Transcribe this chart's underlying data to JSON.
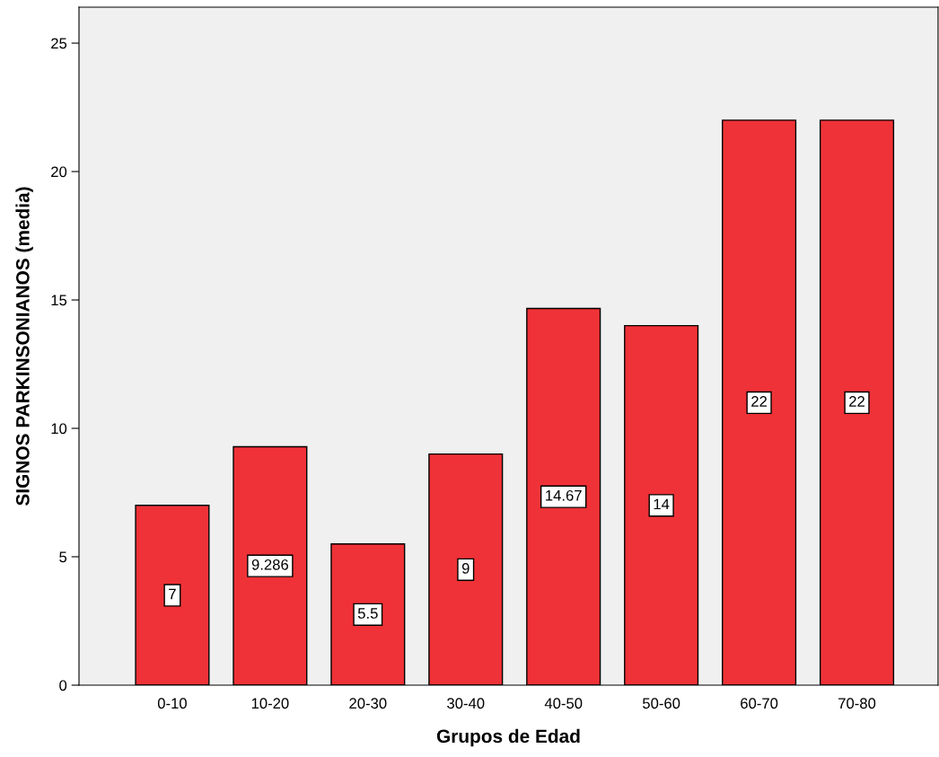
{
  "chart_data": {
    "type": "bar",
    "xlabel": "Grupos de Edad",
    "ylabel": "SIGNOS PARKINSONIANOS (media)",
    "categories": [
      "0-10",
      "10-20",
      "20-30",
      "30-40",
      "40-50",
      "50-60",
      "60-70",
      "70-80"
    ],
    "values": [
      7,
      9.286,
      5.5,
      9,
      14.67,
      14,
      22,
      22
    ],
    "color": "#ef3237",
    "ylim": [
      0,
      26.4
    ],
    "yticks": [
      0,
      5,
      10,
      15,
      20,
      25
    ],
    "data_labels": true,
    "grid": false,
    "legend": false
  }
}
